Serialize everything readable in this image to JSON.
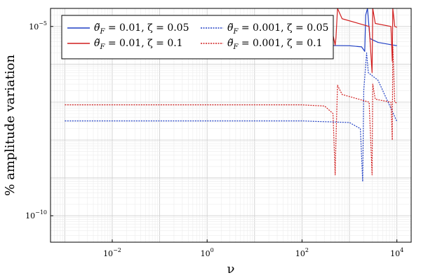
{
  "chart_data": {
    "type": "line",
    "xlabel": "ν",
    "ylabel": "% amplitude variation",
    "xscale": "log",
    "yscale": "log",
    "xlim": [
      0.0005,
      20000
    ],
    "ylim": [
      2e-11,
      3e-05
    ],
    "x_ticks": [
      {
        "value": 0.01,
        "base": "10",
        "exp": "−2"
      },
      {
        "value": 1,
        "base": "10",
        "exp": "0"
      },
      {
        "value": 100,
        "base": "10",
        "exp": "2"
      },
      {
        "value": 10000,
        "base": "10",
        "exp": "4"
      }
    ],
    "y_ticks": [
      {
        "value": 1e-10,
        "base": "10",
        "exp": "−10"
      },
      {
        "value": 1e-05,
        "base": "10",
        "exp": "−5"
      }
    ],
    "grid": true,
    "legend_position": "top-left",
    "legend_columns": 2,
    "series": [
      {
        "name": "θ̃F = 0.01, ζ = 0.05",
        "legend": {
          "theta": "θ̃",
          "sub": "F",
          "text": " = 0.01, ζ = 0.05"
        },
        "color": "#1f3fc4",
        "dash": "solid",
        "baseline": 3.2e-06,
        "points": [
          [
            0.001,
            3.2e-06
          ],
          [
            100,
            3.2e-06
          ],
          [
            1000,
            3.1e-06
          ],
          [
            1800,
            2.9e-06
          ],
          [
            2100,
            2.2e-06
          ],
          [
            2200,
            2e-05
          ],
          [
            2400,
            3e-05
          ],
          [
            2700,
            4.8e-06
          ],
          [
            4000,
            3.8e-06
          ],
          [
            10000,
            3.1e-06
          ]
        ]
      },
      {
        "name": "θ̃F = 0.01, ζ = 0.1",
        "legend": {
          "theta": "θ̃",
          "sub": "F",
          "text": " = 0.01, ζ = 0.1"
        },
        "color": "#d11f1f",
        "dash": "solid",
        "baseline": 8.5e-06,
        "points": [
          [
            0.001,
            8.5e-06
          ],
          [
            100,
            8.5e-06
          ],
          [
            300,
            7.9e-06
          ],
          [
            450,
            6e-06
          ],
          [
            500,
            3.2e-06
          ],
          [
            520,
            5e-06
          ],
          [
            560,
            3e-05
          ],
          [
            700,
            1.6e-05
          ],
          [
            2600,
            1e-05
          ],
          [
            3000,
            6e-07
          ],
          [
            3100,
            3e-05
          ],
          [
            3500,
            1.2e-05
          ],
          [
            7500,
            1e-05
          ],
          [
            8000,
            1.2e-06
          ],
          [
            8200,
            3e-05
          ],
          [
            9000,
            1e-05
          ],
          [
            10000,
            9.5e-06
          ]
        ]
      },
      {
        "name": "θ̃F = 0.001, ζ = 0.05",
        "legend": {
          "theta": "θ̃",
          "sub": "F",
          "text": " = 0.001, ζ = 0.05"
        },
        "color": "#1f3fc4",
        "dash": "dotted",
        "baseline": 3.2e-08,
        "points": [
          [
            0.001,
            3.2e-08
          ],
          [
            100,
            3.2e-08
          ],
          [
            1000,
            2.9e-08
          ],
          [
            1700,
            2e-08
          ],
          [
            1900,
            8e-10
          ],
          [
            2000,
            2e-07
          ],
          [
            2300,
            2e-06
          ],
          [
            2500,
            6e-07
          ],
          [
            4000,
            3.8e-07
          ],
          [
            10000,
            3.1e-08
          ]
        ]
      },
      {
        "name": "θ̃F = 0.001, ζ = 0.1",
        "legend": {
          "theta": "θ̃",
          "sub": "F",
          "text": " = 0.001, ζ = 0.1"
        },
        "color": "#d11f1f",
        "dash": "dotted",
        "baseline": 8.5e-08,
        "points": [
          [
            0.001,
            8.5e-08
          ],
          [
            100,
            8.5e-08
          ],
          [
            300,
            7.9e-08
          ],
          [
            450,
            5e-08
          ],
          [
            500,
            1.2e-09
          ],
          [
            520,
            1e-08
          ],
          [
            560,
            2.8e-07
          ],
          [
            700,
            1.6e-07
          ],
          [
            2600,
            1e-07
          ],
          [
            3000,
            1.2e-09
          ],
          [
            3100,
            3e-07
          ],
          [
            3500,
            1.2e-07
          ],
          [
            7500,
            1e-07
          ],
          [
            8000,
            1e-08
          ],
          [
            8200,
            3e-06
          ],
          [
            9000,
            1e-07
          ],
          [
            10000,
            9.5e-08
          ]
        ]
      }
    ]
  }
}
